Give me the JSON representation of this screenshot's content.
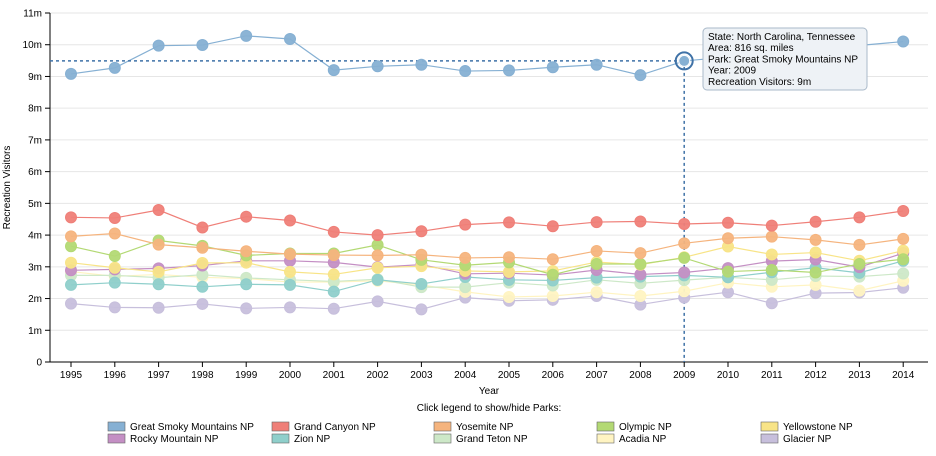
{
  "chart_data": {
    "type": "line",
    "xlabel": "Year",
    "ylabel": "Recreation Visitors",
    "x": [
      "1995",
      "1996",
      "1997",
      "1998",
      "1999",
      "2000",
      "2001",
      "2002",
      "2003",
      "2004",
      "2005",
      "2006",
      "2007",
      "2008",
      "2009",
      "2010",
      "2011",
      "2012",
      "2013",
      "2014"
    ],
    "ylim": [
      0,
      11
    ],
    "yticks": [
      0,
      1,
      2,
      3,
      4,
      5,
      6,
      7,
      8,
      9,
      10,
      11
    ],
    "ytick_labels": [
      "0",
      "1m",
      "2m",
      "3m",
      "4m",
      "5m",
      "6m",
      "7m",
      "8m",
      "9m",
      "10m",
      "11m"
    ],
    "grid": true,
    "series": [
      {
        "name": "Great Smoky Mountains NP",
        "color": "#86b0d3",
        "values": [
          9.08,
          9.27,
          9.97,
          9.99,
          10.28,
          10.18,
          9.2,
          9.32,
          9.37,
          9.17,
          9.19,
          9.29,
          9.37,
          9.04,
          9.49,
          null,
          null,
          null,
          null,
          10.1
        ]
      },
      {
        "name": "Grand Canyon NP",
        "color": "#ef7f78",
        "values": [
          4.56,
          4.54,
          4.79,
          4.24,
          4.58,
          4.46,
          4.1,
          4.0,
          4.12,
          4.33,
          4.4,
          4.28,
          4.41,
          4.43,
          4.35,
          4.39,
          4.3,
          4.42,
          4.56,
          4.76
        ]
      },
      {
        "name": "Yosemite NP",
        "color": "#f5b47e",
        "values": [
          3.96,
          4.05,
          3.7,
          3.6,
          3.49,
          3.4,
          3.37,
          3.36,
          3.38,
          3.28,
          3.3,
          3.24,
          3.5,
          3.43,
          3.74,
          3.9,
          3.95,
          3.85,
          3.69,
          3.88
        ]
      },
      {
        "name": "Olympic NP",
        "color": "#b3d974",
        "values": [
          3.65,
          3.34,
          3.83,
          3.66,
          3.36,
          3.42,
          3.42,
          3.69,
          3.22,
          3.05,
          3.14,
          2.75,
          3.09,
          3.09,
          3.28,
          2.85,
          2.9,
          2.82,
          3.09,
          3.24
        ]
      },
      {
        "name": "Yellowstone NP",
        "color": "#f8e487",
        "values": [
          3.13,
          2.97,
          2.84,
          3.12,
          3.13,
          2.84,
          2.76,
          2.97,
          3.02,
          2.87,
          2.84,
          2.87,
          3.15,
          3.07,
          3.3,
          3.64,
          3.39,
          3.45,
          3.19,
          3.51
        ]
      },
      {
        "name": "Rocky Mountain NP",
        "color": "#c48fc4",
        "values": [
          2.89,
          2.92,
          2.95,
          3.04,
          3.19,
          3.19,
          3.14,
          2.99,
          3.07,
          2.78,
          2.8,
          2.74,
          2.9,
          2.76,
          2.82,
          2.96,
          3.18,
          3.23,
          2.99,
          3.43
        ]
      },
      {
        "name": "Zion NP",
        "color": "#8fcfcb",
        "values": [
          2.43,
          2.5,
          2.45,
          2.37,
          2.45,
          2.43,
          2.22,
          2.59,
          2.46,
          2.68,
          2.59,
          2.57,
          2.66,
          2.69,
          2.73,
          2.67,
          2.83,
          2.97,
          2.81,
          3.19
        ]
      },
      {
        "name": "Grand Teton NP",
        "color": "#cde8c8",
        "values": [
          2.73,
          2.73,
          2.66,
          2.75,
          2.65,
          2.59,
          2.54,
          2.61,
          2.36,
          2.36,
          2.5,
          2.41,
          2.59,
          2.48,
          2.58,
          2.67,
          2.59,
          2.71,
          2.69,
          2.79
        ]
      },
      {
        "name": "Acadia NP",
        "color": "#fff4c2",
        "values": [
          2.85,
          2.7,
          2.76,
          2.67,
          2.63,
          2.52,
          2.52,
          2.56,
          2.43,
          2.21,
          2.05,
          2.08,
          2.2,
          2.08,
          2.23,
          2.5,
          2.37,
          2.43,
          2.25,
          2.56
        ]
      },
      {
        "name": "Glacier NP",
        "color": "#c7bfdc",
        "values": [
          1.84,
          1.72,
          1.71,
          1.83,
          1.69,
          1.72,
          1.68,
          1.91,
          1.66,
          2.03,
          1.93,
          1.96,
          2.08,
          1.81,
          2.03,
          2.2,
          1.85,
          2.17,
          2.19,
          2.34
        ]
      }
    ],
    "legend_hint": "Click legend to show/hide Parks:",
    "legend_placement": "bottom",
    "highlight": {
      "series": "Great Smoky Mountains NP",
      "x": "2009",
      "y": 9.49
    },
    "tooltip": {
      "lines": [
        "State: North Carolina, Tennessee",
        "Area: 816 sq. miles",
        "Park: Great Smoky Mountains NP",
        "Year: 2009",
        "Recreation Visitors: 9m"
      ]
    }
  }
}
